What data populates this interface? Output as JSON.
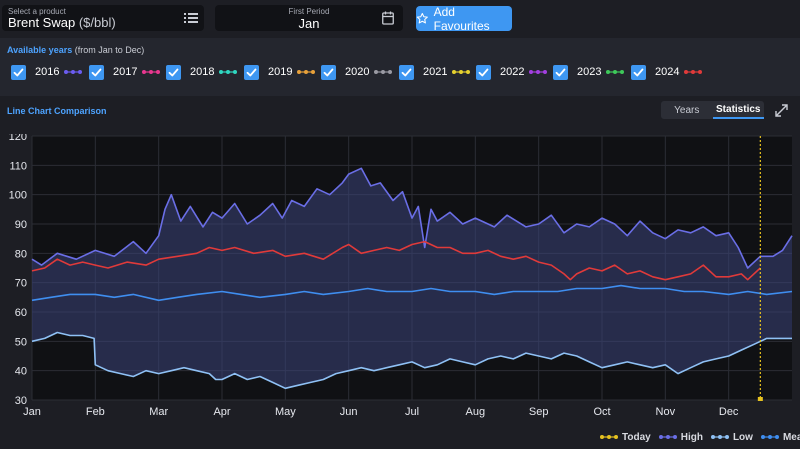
{
  "product": {
    "caption": "Select a product",
    "name": "Brent Swap",
    "unit": "($/bbl)"
  },
  "period": {
    "caption": "First Period",
    "value": "Jan"
  },
  "favourites": {
    "label": "Add Favourites"
  },
  "years_section": {
    "heading": "Available years",
    "subheading": "(from Jan to Dec)",
    "years": [
      {
        "label": "2016",
        "color": "#6b5cf0",
        "checked": true
      },
      {
        "label": "2017",
        "color": "#e8378f",
        "checked": true
      },
      {
        "label": "2018",
        "color": "#2fd6c0",
        "checked": true
      },
      {
        "label": "2019",
        "color": "#e8a13a",
        "checked": true
      },
      {
        "label": "2020",
        "color": "#9a9aa3",
        "checked": true
      },
      {
        "label": "2021",
        "color": "#e6d12e",
        "checked": true
      },
      {
        "label": "2022",
        "color": "#a33fe0",
        "checked": true
      },
      {
        "label": "2023",
        "color": "#3ec95a",
        "checked": true
      },
      {
        "label": "2024",
        "color": "#e03a3a",
        "checked": true
      }
    ]
  },
  "chart_panel": {
    "title": "Line Chart Comparison",
    "tabs": [
      {
        "label": "Years",
        "active": false
      },
      {
        "label": "Statistics",
        "active": true
      }
    ]
  },
  "chart_data": {
    "type": "area",
    "title": "",
    "xlabel": "",
    "ylabel": "",
    "ylim": [
      30,
      120
    ],
    "yticks": [
      30,
      40,
      50,
      60,
      70,
      80,
      90,
      100,
      110,
      120
    ],
    "xlim": [
      0,
      12
    ],
    "months": [
      "Jan",
      "Feb",
      "Mar",
      "Apr",
      "May",
      "Jun",
      "Jul",
      "Aug",
      "Sep",
      "Oct",
      "Nov",
      "Dec"
    ],
    "grid": true,
    "today_x": 11.5,
    "series": [
      {
        "name": "High",
        "color": "#6a6ee6",
        "points": [
          [
            0,
            78
          ],
          [
            0.15,
            76
          ],
          [
            0.4,
            80
          ],
          [
            0.7,
            78
          ],
          [
            1,
            81
          ],
          [
            1.3,
            79
          ],
          [
            1.6,
            84
          ],
          [
            1.8,
            80
          ],
          [
            2,
            86
          ],
          [
            2.1,
            95
          ],
          [
            2.2,
            100
          ],
          [
            2.35,
            91
          ],
          [
            2.5,
            96
          ],
          [
            2.7,
            89
          ],
          [
            2.85,
            94
          ],
          [
            3,
            92
          ],
          [
            3.2,
            97
          ],
          [
            3.4,
            90
          ],
          [
            3.6,
            93
          ],
          [
            3.8,
            97
          ],
          [
            3.95,
            92
          ],
          [
            4.1,
            98
          ],
          [
            4.3,
            96
          ],
          [
            4.5,
            102
          ],
          [
            4.7,
            100
          ],
          [
            4.9,
            104
          ],
          [
            5,
            107
          ],
          [
            5.2,
            109
          ],
          [
            5.35,
            103
          ],
          [
            5.5,
            104
          ],
          [
            5.7,
            98
          ],
          [
            5.85,
            101
          ],
          [
            6,
            92
          ],
          [
            6.1,
            96
          ],
          [
            6.2,
            82
          ],
          [
            6.3,
            95
          ],
          [
            6.4,
            91
          ],
          [
            6.6,
            94
          ],
          [
            6.8,
            90
          ],
          [
            7,
            92
          ],
          [
            7.3,
            89
          ],
          [
            7.5,
            93
          ],
          [
            7.8,
            89
          ],
          [
            8,
            90
          ],
          [
            8.2,
            93
          ],
          [
            8.4,
            87
          ],
          [
            8.6,
            90
          ],
          [
            8.8,
            89
          ],
          [
            9,
            92
          ],
          [
            9.2,
            90
          ],
          [
            9.4,
            86
          ],
          [
            9.6,
            91
          ],
          [
            9.8,
            87
          ],
          [
            10,
            85
          ],
          [
            10.2,
            88
          ],
          [
            10.4,
            87
          ],
          [
            10.6,
            89
          ],
          [
            10.8,
            86
          ],
          [
            11,
            87
          ],
          [
            11.15,
            82
          ],
          [
            11.3,
            75
          ],
          [
            11.5,
            79
          ],
          [
            11.7,
            79
          ],
          [
            11.85,
            81
          ],
          [
            12,
            86
          ]
        ]
      },
      {
        "name": "Mean",
        "color": "#3f8ef0",
        "points": [
          [
            0,
            64
          ],
          [
            0.3,
            65
          ],
          [
            0.6,
            66
          ],
          [
            1,
            66
          ],
          [
            1.3,
            65
          ],
          [
            1.6,
            66
          ],
          [
            2,
            64
          ],
          [
            2.3,
            65
          ],
          [
            2.6,
            66
          ],
          [
            3,
            67
          ],
          [
            3.3,
            66
          ],
          [
            3.6,
            65
          ],
          [
            4,
            66
          ],
          [
            4.3,
            67
          ],
          [
            4.6,
            66
          ],
          [
            5,
            67
          ],
          [
            5.3,
            68
          ],
          [
            5.6,
            67
          ],
          [
            6,
            67
          ],
          [
            6.3,
            68
          ],
          [
            6.6,
            67
          ],
          [
            7,
            67
          ],
          [
            7.3,
            66
          ],
          [
            7.6,
            67
          ],
          [
            8,
            67
          ],
          [
            8.3,
            67
          ],
          [
            8.6,
            68
          ],
          [
            9,
            68
          ],
          [
            9.3,
            69
          ],
          [
            9.6,
            68
          ],
          [
            10,
            68
          ],
          [
            10.3,
            67
          ],
          [
            10.6,
            67
          ],
          [
            11,
            66
          ],
          [
            11.3,
            67
          ],
          [
            11.6,
            66
          ],
          [
            12,
            67
          ]
        ]
      },
      {
        "name": "Low",
        "color": "#8fc1f5",
        "points": [
          [
            0,
            50
          ],
          [
            0.2,
            51
          ],
          [
            0.4,
            53
          ],
          [
            0.6,
            52
          ],
          [
            0.8,
            52
          ],
          [
            0.98,
            51
          ],
          [
            1,
            42
          ],
          [
            1.2,
            40
          ],
          [
            1.4,
            39
          ],
          [
            1.6,
            38
          ],
          [
            1.8,
            40
          ],
          [
            2,
            39
          ],
          [
            2.2,
            40
          ],
          [
            2.4,
            41
          ],
          [
            2.6,
            40
          ],
          [
            2.8,
            39
          ],
          [
            2.9,
            37
          ],
          [
            3,
            37
          ],
          [
            3.2,
            39
          ],
          [
            3.4,
            37
          ],
          [
            3.6,
            38
          ],
          [
            3.8,
            36
          ],
          [
            4,
            34
          ],
          [
            4.2,
            35
          ],
          [
            4.4,
            36
          ],
          [
            4.6,
            37
          ],
          [
            4.8,
            39
          ],
          [
            5,
            40
          ],
          [
            5.2,
            41
          ],
          [
            5.4,
            40
          ],
          [
            5.6,
            41
          ],
          [
            5.8,
            42
          ],
          [
            6,
            43
          ],
          [
            6.2,
            41
          ],
          [
            6.4,
            42
          ],
          [
            6.6,
            44
          ],
          [
            6.8,
            43
          ],
          [
            7,
            42
          ],
          [
            7.2,
            44
          ],
          [
            7.4,
            45
          ],
          [
            7.6,
            44
          ],
          [
            7.8,
            46
          ],
          [
            8,
            45
          ],
          [
            8.2,
            44
          ],
          [
            8.4,
            46
          ],
          [
            8.6,
            45
          ],
          [
            8.8,
            43
          ],
          [
            9,
            41
          ],
          [
            9.2,
            42
          ],
          [
            9.4,
            43
          ],
          [
            9.6,
            42
          ],
          [
            9.8,
            41
          ],
          [
            10,
            42
          ],
          [
            10.2,
            39
          ],
          [
            10.4,
            41
          ],
          [
            10.6,
            43
          ],
          [
            10.8,
            44
          ],
          [
            11,
            45
          ],
          [
            11.2,
            47
          ],
          [
            11.4,
            49
          ],
          [
            11.6,
            51
          ],
          [
            11.8,
            51
          ],
          [
            12,
            51
          ]
        ]
      },
      {
        "name": "2024",
        "color": "#e03a3a",
        "points": [
          [
            0,
            74
          ],
          [
            0.2,
            75
          ],
          [
            0.4,
            78
          ],
          [
            0.6,
            76
          ],
          [
            0.8,
            77
          ],
          [
            1,
            76
          ],
          [
            1.2,
            75
          ],
          [
            1.5,
            77
          ],
          [
            1.8,
            76
          ],
          [
            2,
            78
          ],
          [
            2.3,
            79
          ],
          [
            2.6,
            80
          ],
          [
            2.8,
            82
          ],
          [
            3,
            81
          ],
          [
            3.2,
            82
          ],
          [
            3.5,
            80
          ],
          [
            3.8,
            81
          ],
          [
            4,
            79
          ],
          [
            4.3,
            80
          ],
          [
            4.6,
            78
          ],
          [
            4.9,
            82
          ],
          [
            5,
            83
          ],
          [
            5.2,
            80
          ],
          [
            5.4,
            81
          ],
          [
            5.6,
            82
          ],
          [
            5.8,
            81
          ],
          [
            6,
            83
          ],
          [
            6.2,
            84
          ],
          [
            6.4,
            82
          ],
          [
            6.6,
            82
          ],
          [
            6.8,
            80
          ],
          [
            7,
            80
          ],
          [
            7.2,
            81
          ],
          [
            7.4,
            79
          ],
          [
            7.6,
            78
          ],
          [
            7.8,
            79
          ],
          [
            8,
            77
          ],
          [
            8.2,
            76
          ],
          [
            8.4,
            73
          ],
          [
            8.5,
            71
          ],
          [
            8.6,
            73
          ],
          [
            8.8,
            75
          ],
          [
            9,
            74
          ],
          [
            9.2,
            76
          ],
          [
            9.4,
            73
          ],
          [
            9.6,
            74
          ],
          [
            9.8,
            72
          ],
          [
            10,
            71
          ],
          [
            10.2,
            72
          ],
          [
            10.4,
            73
          ],
          [
            10.6,
            76
          ],
          [
            10.8,
            72
          ],
          [
            11,
            72
          ],
          [
            11.2,
            73
          ],
          [
            11.3,
            71
          ],
          [
            11.5,
            75
          ]
        ]
      }
    ]
  },
  "legend": {
    "items": [
      {
        "label": "Today",
        "color": "#e6c220"
      },
      {
        "label": "High",
        "color": "#6a6ee6"
      },
      {
        "label": "Low",
        "color": "#8fc1f5"
      },
      {
        "label": "Mean",
        "color": "#3f8ef0"
      }
    ]
  }
}
